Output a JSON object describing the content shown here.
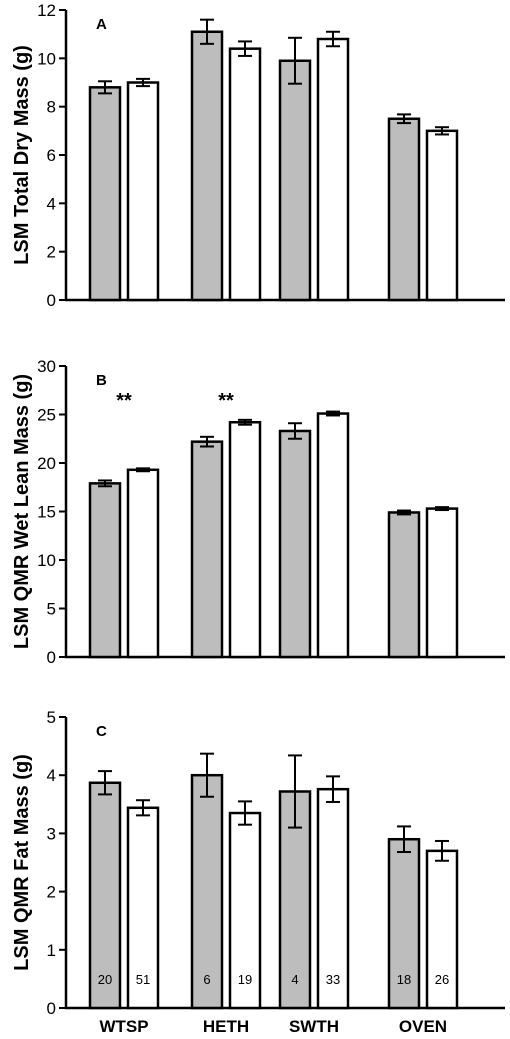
{
  "chart_data": [
    {
      "type": "bar",
      "panel_label": "A",
      "ylabel": "LSM Total Dry Mass (g)",
      "ylim": [
        0,
        12
      ],
      "yticks": [
        "0",
        "2",
        "4",
        "6",
        "8",
        "10",
        "12"
      ],
      "categories": [
        "WTSP",
        "HETH",
        "SWTH",
        "OVEN"
      ],
      "series": [
        {
          "color": "#bdbdbd",
          "values": [
            8.8,
            11.1,
            9.9,
            7.5
          ],
          "errors": [
            0.25,
            0.5,
            0.95,
            0.18
          ]
        },
        {
          "color": "#ffffff",
          "values": [
            9.0,
            10.4,
            10.8,
            7.0
          ],
          "errors": [
            0.15,
            0.3,
            0.3,
            0.15
          ]
        }
      ],
      "annotations": []
    },
    {
      "type": "bar",
      "panel_label": "B",
      "ylabel": "LSM QMR Wet Lean  Mass (g)",
      "ylim": [
        0,
        30
      ],
      "yticks": [
        "0",
        "5",
        "10",
        "15",
        "20",
        "25",
        "30"
      ],
      "categories": [
        "WTSP",
        "HETH",
        "SWTH",
        "OVEN"
      ],
      "series": [
        {
          "color": "#bdbdbd",
          "values": [
            17.9,
            22.2,
            23.3,
            14.9
          ],
          "errors": [
            0.3,
            0.5,
            0.8,
            0.2
          ]
        },
        {
          "color": "#ffffff",
          "values": [
            19.3,
            24.2,
            25.1,
            15.3
          ],
          "errors": [
            0.15,
            0.25,
            0.2,
            0.15
          ]
        }
      ],
      "annotations": [
        {
          "category": "WTSP",
          "text": "**"
        },
        {
          "category": "HETH",
          "text": "**"
        }
      ]
    },
    {
      "type": "bar",
      "panel_label": "C",
      "ylabel": "LSM QMR Fat Mass  (g)",
      "ylim": [
        0,
        5
      ],
      "yticks": [
        "0",
        "1",
        "2",
        "3",
        "4",
        "5"
      ],
      "categories": [
        "WTSP",
        "HETH",
        "SWTH",
        "OVEN"
      ],
      "series": [
        {
          "color": "#bdbdbd",
          "values": [
            3.87,
            4.0,
            3.72,
            2.9
          ],
          "errors": [
            0.2,
            0.37,
            0.62,
            0.22
          ],
          "n": [
            "20",
            "6",
            "4",
            "18"
          ]
        },
        {
          "color": "#ffffff",
          "values": [
            3.44,
            3.35,
            3.76,
            2.7
          ],
          "errors": [
            0.13,
            0.2,
            0.22,
            0.17
          ],
          "n": [
            "51",
            "19",
            "33",
            "26"
          ]
        }
      ],
      "annotations": []
    }
  ]
}
